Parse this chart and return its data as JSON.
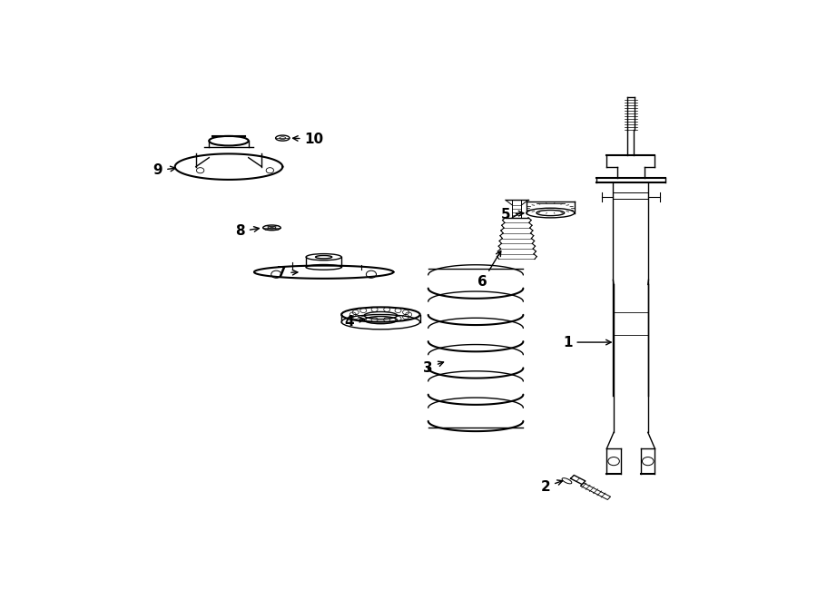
{
  "bg_color": "#ffffff",
  "line_color": "#000000",
  "fig_width": 9.0,
  "fig_height": 6.61,
  "dpi": 100,
  "labels": [
    [
      1,
      0.735,
      0.415,
      0.775,
      0.415
    ],
    [
      2,
      0.695,
      0.105,
      0.718,
      0.125
    ],
    [
      3,
      0.515,
      0.355,
      0.545,
      0.37
    ],
    [
      4,
      0.385,
      0.46,
      0.425,
      0.467
    ],
    [
      5,
      0.638,
      0.69,
      0.672,
      0.695
    ],
    [
      6,
      0.602,
      0.545,
      0.635,
      0.555
    ],
    [
      7,
      0.285,
      0.565,
      0.325,
      0.567
    ],
    [
      8,
      0.22,
      0.66,
      0.255,
      0.663
    ],
    [
      9,
      0.09,
      0.79,
      0.125,
      0.795
    ],
    [
      10,
      0.33,
      0.855,
      0.295,
      0.857
    ]
  ]
}
